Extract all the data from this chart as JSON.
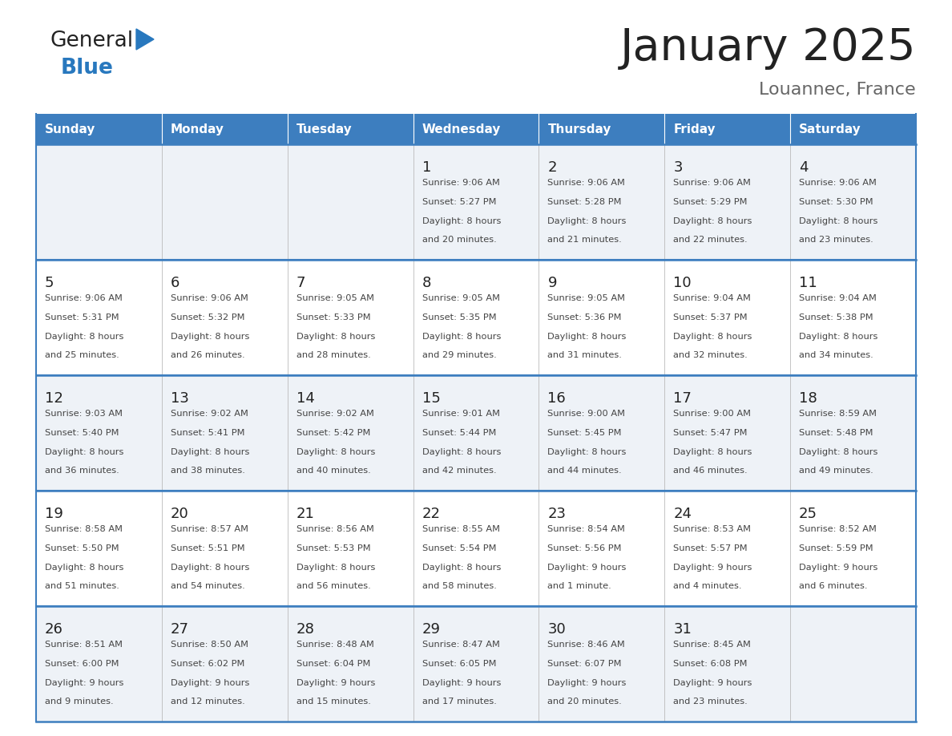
{
  "title": "January 2025",
  "subtitle": "Louannec, France",
  "days_of_week": [
    "Sunday",
    "Monday",
    "Tuesday",
    "Wednesday",
    "Thursday",
    "Friday",
    "Saturday"
  ],
  "header_bg": "#3d7ebf",
  "header_text": "#ffffff",
  "row_bg_odd": "#eef2f7",
  "row_bg_even": "#ffffff",
  "cell_border_color": "#3d7ebf",
  "day_num_color": "#222222",
  "text_color": "#444444",
  "calendar_data": [
    [
      null,
      null,
      null,
      {
        "day": 1,
        "sunrise": "9:06 AM",
        "sunset": "5:27 PM",
        "daylight": "8 hours",
        "daylight2": "and 20 minutes."
      },
      {
        "day": 2,
        "sunrise": "9:06 AM",
        "sunset": "5:28 PM",
        "daylight": "8 hours",
        "daylight2": "and 21 minutes."
      },
      {
        "day": 3,
        "sunrise": "9:06 AM",
        "sunset": "5:29 PM",
        "daylight": "8 hours",
        "daylight2": "and 22 minutes."
      },
      {
        "day": 4,
        "sunrise": "9:06 AM",
        "sunset": "5:30 PM",
        "daylight": "8 hours",
        "daylight2": "and 23 minutes."
      }
    ],
    [
      {
        "day": 5,
        "sunrise": "9:06 AM",
        "sunset": "5:31 PM",
        "daylight": "8 hours",
        "daylight2": "and 25 minutes."
      },
      {
        "day": 6,
        "sunrise": "9:06 AM",
        "sunset": "5:32 PM",
        "daylight": "8 hours",
        "daylight2": "and 26 minutes."
      },
      {
        "day": 7,
        "sunrise": "9:05 AM",
        "sunset": "5:33 PM",
        "daylight": "8 hours",
        "daylight2": "and 28 minutes."
      },
      {
        "day": 8,
        "sunrise": "9:05 AM",
        "sunset": "5:35 PM",
        "daylight": "8 hours",
        "daylight2": "and 29 minutes."
      },
      {
        "day": 9,
        "sunrise": "9:05 AM",
        "sunset": "5:36 PM",
        "daylight": "8 hours",
        "daylight2": "and 31 minutes."
      },
      {
        "day": 10,
        "sunrise": "9:04 AM",
        "sunset": "5:37 PM",
        "daylight": "8 hours",
        "daylight2": "and 32 minutes."
      },
      {
        "day": 11,
        "sunrise": "9:04 AM",
        "sunset": "5:38 PM",
        "daylight": "8 hours",
        "daylight2": "and 34 minutes."
      }
    ],
    [
      {
        "day": 12,
        "sunrise": "9:03 AM",
        "sunset": "5:40 PM",
        "daylight": "8 hours",
        "daylight2": "and 36 minutes."
      },
      {
        "day": 13,
        "sunrise": "9:02 AM",
        "sunset": "5:41 PM",
        "daylight": "8 hours",
        "daylight2": "and 38 minutes."
      },
      {
        "day": 14,
        "sunrise": "9:02 AM",
        "sunset": "5:42 PM",
        "daylight": "8 hours",
        "daylight2": "and 40 minutes."
      },
      {
        "day": 15,
        "sunrise": "9:01 AM",
        "sunset": "5:44 PM",
        "daylight": "8 hours",
        "daylight2": "and 42 minutes."
      },
      {
        "day": 16,
        "sunrise": "9:00 AM",
        "sunset": "5:45 PM",
        "daylight": "8 hours",
        "daylight2": "and 44 minutes."
      },
      {
        "day": 17,
        "sunrise": "9:00 AM",
        "sunset": "5:47 PM",
        "daylight": "8 hours",
        "daylight2": "and 46 minutes."
      },
      {
        "day": 18,
        "sunrise": "8:59 AM",
        "sunset": "5:48 PM",
        "daylight": "8 hours",
        "daylight2": "and 49 minutes."
      }
    ],
    [
      {
        "day": 19,
        "sunrise": "8:58 AM",
        "sunset": "5:50 PM",
        "daylight": "8 hours",
        "daylight2": "and 51 minutes."
      },
      {
        "day": 20,
        "sunrise": "8:57 AM",
        "sunset": "5:51 PM",
        "daylight": "8 hours",
        "daylight2": "and 54 minutes."
      },
      {
        "day": 21,
        "sunrise": "8:56 AM",
        "sunset": "5:53 PM",
        "daylight": "8 hours",
        "daylight2": "and 56 minutes."
      },
      {
        "day": 22,
        "sunrise": "8:55 AM",
        "sunset": "5:54 PM",
        "daylight": "8 hours",
        "daylight2": "and 58 minutes."
      },
      {
        "day": 23,
        "sunrise": "8:54 AM",
        "sunset": "5:56 PM",
        "daylight": "9 hours",
        "daylight2": "and 1 minute."
      },
      {
        "day": 24,
        "sunrise": "8:53 AM",
        "sunset": "5:57 PM",
        "daylight": "9 hours",
        "daylight2": "and 4 minutes."
      },
      {
        "day": 25,
        "sunrise": "8:52 AM",
        "sunset": "5:59 PM",
        "daylight": "9 hours",
        "daylight2": "and 6 minutes."
      }
    ],
    [
      {
        "day": 26,
        "sunrise": "8:51 AM",
        "sunset": "6:00 PM",
        "daylight": "9 hours",
        "daylight2": "and 9 minutes."
      },
      {
        "day": 27,
        "sunrise": "8:50 AM",
        "sunset": "6:02 PM",
        "daylight": "9 hours",
        "daylight2": "and 12 minutes."
      },
      {
        "day": 28,
        "sunrise": "8:48 AM",
        "sunset": "6:04 PM",
        "daylight": "9 hours",
        "daylight2": "and 15 minutes."
      },
      {
        "day": 29,
        "sunrise": "8:47 AM",
        "sunset": "6:05 PM",
        "daylight": "9 hours",
        "daylight2": "and 17 minutes."
      },
      {
        "day": 30,
        "sunrise": "8:46 AM",
        "sunset": "6:07 PM",
        "daylight": "9 hours",
        "daylight2": "and 20 minutes."
      },
      {
        "day": 31,
        "sunrise": "8:45 AM",
        "sunset": "6:08 PM",
        "daylight": "9 hours",
        "daylight2": "and 23 minutes."
      },
      null
    ]
  ],
  "logo_general_color": "#222222",
  "logo_blue_color": "#2878be",
  "logo_triangle_color": "#2878be",
  "title_color": "#222222",
  "subtitle_color": "#666666"
}
